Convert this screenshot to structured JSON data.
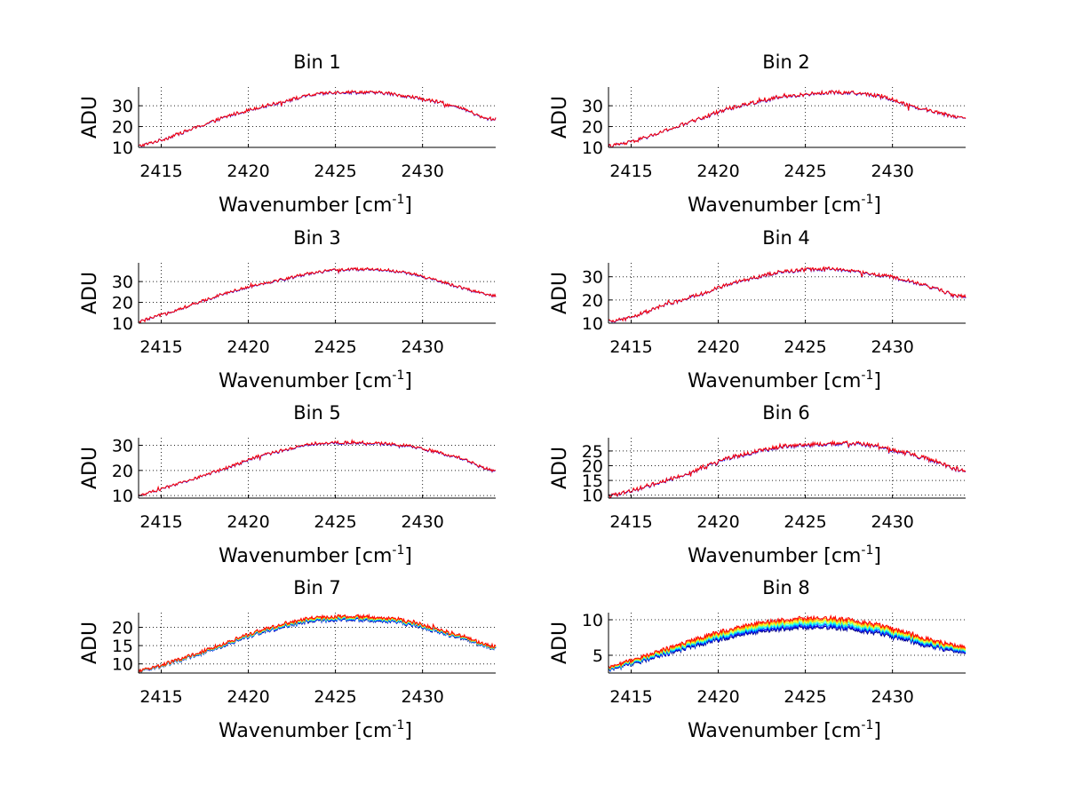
{
  "colors": {
    "background": "#ffffff",
    "series_palette": [
      "#00007f",
      "#0000ff",
      "#0080ff",
      "#00ffff",
      "#80ff80",
      "#ffff00",
      "#ff8000",
      "#ff0000"
    ]
  },
  "chart_data": [
    {
      "type": "line",
      "title": "Bin 1",
      "xlabel": "Wavenumber [cm",
      "xlabel_sup": "-1",
      "xlabel_end": "]",
      "ylabel": "ADU",
      "xlim": [
        2413.7,
        2434.2
      ],
      "ylim": [
        10,
        39
      ],
      "xticks": [
        2415,
        2420,
        2425,
        2430
      ],
      "yticks": [
        10,
        20,
        30
      ],
      "grid": true,
      "series_count": 2,
      "profile": {
        "x": [
          2413.7,
          2415,
          2417,
          2419,
          2420.5,
          2422,
          2423.5,
          2425,
          2426.5,
          2428,
          2429.5,
          2431,
          2432.5,
          2433.5,
          2434.2
        ],
        "y": [
          10.5,
          13.5,
          19.5,
          25.5,
          29,
          32,
          35,
          36.5,
          36.5,
          36,
          34,
          31.5,
          28,
          24,
          23.5
        ]
      },
      "noise": 0.8
    },
    {
      "type": "line",
      "title": "Bin 2",
      "xlabel": "Wavenumber [cm",
      "xlabel_sup": "-1",
      "xlabel_end": "]",
      "ylabel": "ADU",
      "xlim": [
        2413.7,
        2434.2
      ],
      "ylim": [
        10,
        39
      ],
      "xticks": [
        2415,
        2420,
        2425,
        2430
      ],
      "yticks": [
        10,
        20,
        30
      ],
      "grid": true,
      "series_count": 2,
      "profile": {
        "x": [
          2413.7,
          2415,
          2417,
          2419,
          2420.5,
          2422,
          2423.5,
          2425,
          2426.5,
          2428,
          2429.5,
          2431,
          2432.5,
          2433.5,
          2434.2
        ],
        "y": [
          10.5,
          12.5,
          18,
          24,
          28.5,
          31.5,
          34,
          35.5,
          36.5,
          36,
          34.5,
          30,
          27,
          25,
          24
        ]
      },
      "noise": 0.9
    },
    {
      "type": "line",
      "title": "Bin 3",
      "xlabel": "Wavenumber [cm",
      "xlabel_sup": "-1",
      "xlabel_end": "]",
      "ylabel": "ADU",
      "xlim": [
        2413.7,
        2434.2
      ],
      "ylim": [
        10,
        39
      ],
      "xticks": [
        2415,
        2420,
        2425,
        2430
      ],
      "yticks": [
        10,
        20,
        30
      ],
      "grid": true,
      "series_count": 2,
      "profile": {
        "x": [
          2413.7,
          2415,
          2417,
          2418.5,
          2420.5,
          2422,
          2423.5,
          2425,
          2426.5,
          2428,
          2429.5,
          2431,
          2432.5,
          2433.5,
          2434.2
        ],
        "y": [
          10.5,
          14,
          19.5,
          24,
          28.5,
          31,
          34,
          35.5,
          36,
          35.5,
          33.5,
          30,
          26.5,
          24,
          23
        ]
      },
      "noise": 0.7
    },
    {
      "type": "line",
      "title": "Bin 4",
      "xlabel": "Wavenumber [cm",
      "xlabel_sup": "-1",
      "xlabel_end": "]",
      "ylabel": "ADU",
      "xlim": [
        2413.7,
        2434.2
      ],
      "ylim": [
        10,
        36
      ],
      "xticks": [
        2415,
        2420,
        2425,
        2430
      ],
      "yticks": [
        10,
        20,
        30
      ],
      "grid": true,
      "series_count": 2,
      "profile": {
        "x": [
          2413.7,
          2415,
          2417,
          2419,
          2420.5,
          2422,
          2423.5,
          2425,
          2426.5,
          2428,
          2429.5,
          2431,
          2432.5,
          2433.5,
          2434.2
        ],
        "y": [
          10.5,
          12.5,
          18,
          22.5,
          26.5,
          29.5,
          32,
          33,
          33.5,
          32,
          30.5,
          28,
          25,
          22,
          21.5
        ]
      },
      "noise": 0.8
    },
    {
      "type": "line",
      "title": "Bin 5",
      "xlabel": "Wavenumber [cm",
      "xlabel_sup": "-1",
      "xlabel_end": "]",
      "ylabel": "ADU",
      "xlim": [
        2413.7,
        2434.2
      ],
      "ylim": [
        9,
        33
      ],
      "xticks": [
        2415,
        2420,
        2425,
        2430
      ],
      "yticks": [
        10,
        20,
        30
      ],
      "grid": true,
      "series_count": 2,
      "profile": {
        "x": [
          2413.7,
          2415,
          2417,
          2419,
          2420.5,
          2422,
          2423.5,
          2425,
          2426.5,
          2428,
          2429.5,
          2431,
          2432.5,
          2433.5,
          2434.2
        ],
        "y": [
          10,
          12.5,
          17,
          21.5,
          25.5,
          28,
          30.5,
          31,
          31,
          30.5,
          29.5,
          27,
          24,
          21,
          19.5
        ]
      },
      "noise": 0.6
    },
    {
      "type": "line",
      "title": "Bin 6",
      "xlabel": "Wavenumber [cm",
      "xlabel_sup": "-1",
      "xlabel_end": "]",
      "ylabel": "ADU",
      "xlim": [
        2413.7,
        2434.2
      ],
      "ylim": [
        9,
        29.5
      ],
      "xticks": [
        2415,
        2420,
        2425,
        2430
      ],
      "yticks": [
        10,
        15,
        20,
        25
      ],
      "grid": true,
      "series_count": 2,
      "profile": {
        "x": [
          2413.7,
          2415,
          2417,
          2419,
          2420.5,
          2422,
          2423.5,
          2425,
          2426.5,
          2428,
          2429.5,
          2431,
          2432.5,
          2433.5,
          2434.2
        ],
        "y": [
          9.5,
          11.5,
          15,
          19,
          22.5,
          24.5,
          26.5,
          27,
          27.5,
          27.5,
          26,
          24,
          21.5,
          19,
          18
        ]
      },
      "noise": 0.7
    },
    {
      "type": "line",
      "title": "Bin 7",
      "xlabel": "Wavenumber [cm",
      "xlabel_sup": "-1",
      "xlabel_end": "]",
      "ylabel": "ADU",
      "xlim": [
        2413.7,
        2434.2
      ],
      "ylim": [
        7.5,
        24
      ],
      "xticks": [
        2415,
        2420,
        2425,
        2430
      ],
      "yticks": [
        10,
        15,
        20
      ],
      "grid": true,
      "series_count": 8,
      "series_spread": 0.8,
      "profile": {
        "x": [
          2413.7,
          2415,
          2417,
          2419,
          2420.5,
          2422,
          2423.5,
          2425,
          2426.5,
          2428,
          2429.5,
          2431,
          2432.5,
          2433.5,
          2434.2
        ],
        "y": [
          8,
          9.5,
          12.5,
          16,
          18.5,
          20.5,
          22,
          22.5,
          22.5,
          22,
          21,
          19,
          17,
          15,
          14.5
        ]
      },
      "noise": 0.5
    },
    {
      "type": "line",
      "title": "Bin 8",
      "xlabel": "Wavenumber [cm",
      "xlabel_sup": "-1",
      "xlabel_end": "]",
      "ylabel": "ADU",
      "xlim": [
        2413.7,
        2434.2
      ],
      "ylim": [
        2.5,
        11
      ],
      "xticks": [
        2415,
        2420,
        2425,
        2430
      ],
      "yticks": [
        5,
        10
      ],
      "grid": true,
      "series_count": 8,
      "series_spread": 1.2,
      "profile": {
        "x": [
          2413.7,
          2415,
          2417,
          2419,
          2420.5,
          2422,
          2423.5,
          2425,
          2426.5,
          2428,
          2429.5,
          2431,
          2432.5,
          2433.5,
          2434.2
        ],
        "y": [
          3,
          4,
          5.5,
          7,
          8,
          8.8,
          9.3,
          9.6,
          9.6,
          9.2,
          8.5,
          7.5,
          6.5,
          6,
          5.8
        ]
      },
      "noise": 0.3
    }
  ]
}
